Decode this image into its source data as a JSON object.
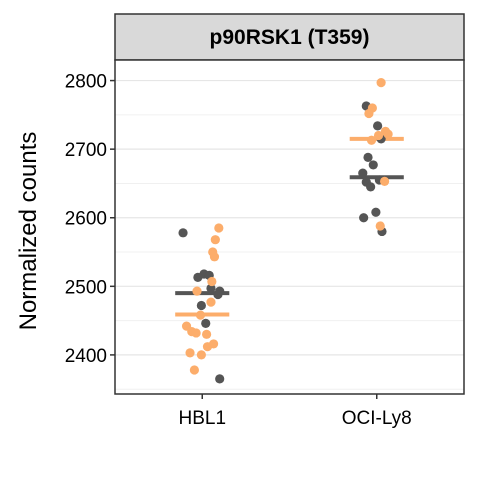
{
  "chart_data": {
    "type": "scatter",
    "title": "p90RSK1 (T359)",
    "ylabel": "Normalized counts",
    "xlabel": "",
    "categories": [
      "HBL1",
      "OCI-Ly8"
    ],
    "yticks": [
      2400,
      2500,
      2600,
      2700,
      2800
    ],
    "ylim": [
      2343,
      2830
    ],
    "grid": true,
    "colors": {
      "dark": "#555555",
      "light": "#fcad6b"
    },
    "series": [
      {
        "color_key": "dark",
        "mean": {
          "HBL1": 2490,
          "OCI-Ly8": 2659
        },
        "points": [
          {
            "cat": "HBL1",
            "jitter": -0.22,
            "y": 2578
          },
          {
            "cat": "HBL1",
            "jitter": 0.02,
            "y": 2518
          },
          {
            "cat": "HBL1",
            "jitter": 0.08,
            "y": 2516
          },
          {
            "cat": "HBL1",
            "jitter": -0.05,
            "y": 2513
          },
          {
            "cat": "HBL1",
            "jitter": 0.1,
            "y": 2497
          },
          {
            "cat": "HBL1",
            "jitter": 0.2,
            "y": 2493
          },
          {
            "cat": "HBL1",
            "jitter": 0.18,
            "y": 2488
          },
          {
            "cat": "HBL1",
            "jitter": -0.01,
            "y": 2472
          },
          {
            "cat": "HBL1",
            "jitter": 0.04,
            "y": 2446
          },
          {
            "cat": "HBL1",
            "jitter": 0.2,
            "y": 2365
          },
          {
            "cat": "OCI-Ly8",
            "jitter": -0.12,
            "y": 2763
          },
          {
            "cat": "OCI-Ly8",
            "jitter": 0.01,
            "y": 2734
          },
          {
            "cat": "OCI-Ly8",
            "jitter": 0.05,
            "y": 2715
          },
          {
            "cat": "OCI-Ly8",
            "jitter": -0.1,
            "y": 2688
          },
          {
            "cat": "OCI-Ly8",
            "jitter": -0.04,
            "y": 2677
          },
          {
            "cat": "OCI-Ly8",
            "jitter": -0.16,
            "y": 2665
          },
          {
            "cat": "OCI-Ly8",
            "jitter": -0.12,
            "y": 2652
          },
          {
            "cat": "OCI-Ly8",
            "jitter": -0.07,
            "y": 2645
          },
          {
            "cat": "OCI-Ly8",
            "jitter": 0.03,
            "y": 2655
          },
          {
            "cat": "OCI-Ly8",
            "jitter": -0.15,
            "y": 2600
          },
          {
            "cat": "OCI-Ly8",
            "jitter": -0.01,
            "y": 2608
          },
          {
            "cat": "OCI-Ly8",
            "jitter": 0.06,
            "y": 2580
          }
        ]
      },
      {
        "color_key": "light",
        "mean": {
          "HBL1": 2459,
          "OCI-Ly8": 2715
        },
        "points": [
          {
            "cat": "HBL1",
            "jitter": 0.19,
            "y": 2585
          },
          {
            "cat": "HBL1",
            "jitter": 0.15,
            "y": 2568
          },
          {
            "cat": "HBL1",
            "jitter": 0.12,
            "y": 2550
          },
          {
            "cat": "HBL1",
            "jitter": 0.14,
            "y": 2543
          },
          {
            "cat": "HBL1",
            "jitter": 0.11,
            "y": 2507
          },
          {
            "cat": "HBL1",
            "jitter": -0.06,
            "y": 2493
          },
          {
            "cat": "HBL1",
            "jitter": 0.1,
            "y": 2477
          },
          {
            "cat": "HBL1",
            "jitter": -0.02,
            "y": 2458
          },
          {
            "cat": "HBL1",
            "jitter": -0.18,
            "y": 2442
          },
          {
            "cat": "HBL1",
            "jitter": -0.12,
            "y": 2434
          },
          {
            "cat": "HBL1",
            "jitter": -0.07,
            "y": 2432
          },
          {
            "cat": "HBL1",
            "jitter": 0.05,
            "y": 2430
          },
          {
            "cat": "HBL1",
            "jitter": 0.13,
            "y": 2416
          },
          {
            "cat": "HBL1",
            "jitter": 0.06,
            "y": 2412
          },
          {
            "cat": "HBL1",
            "jitter": -0.14,
            "y": 2403
          },
          {
            "cat": "HBL1",
            "jitter": -0.01,
            "y": 2400
          },
          {
            "cat": "HBL1",
            "jitter": -0.09,
            "y": 2378
          },
          {
            "cat": "OCI-Ly8",
            "jitter": 0.05,
            "y": 2797
          },
          {
            "cat": "OCI-Ly8",
            "jitter": -0.05,
            "y": 2760
          },
          {
            "cat": "OCI-Ly8",
            "jitter": -0.09,
            "y": 2752
          },
          {
            "cat": "OCI-Ly8",
            "jitter": 0.1,
            "y": 2726
          },
          {
            "cat": "OCI-Ly8",
            "jitter": 0.13,
            "y": 2722
          },
          {
            "cat": "OCI-Ly8",
            "jitter": 0.02,
            "y": 2720
          },
          {
            "cat": "OCI-Ly8",
            "jitter": -0.06,
            "y": 2713
          },
          {
            "cat": "OCI-Ly8",
            "jitter": 0.09,
            "y": 2653
          },
          {
            "cat": "OCI-Ly8",
            "jitter": 0.04,
            "y": 2588
          }
        ]
      }
    ]
  }
}
